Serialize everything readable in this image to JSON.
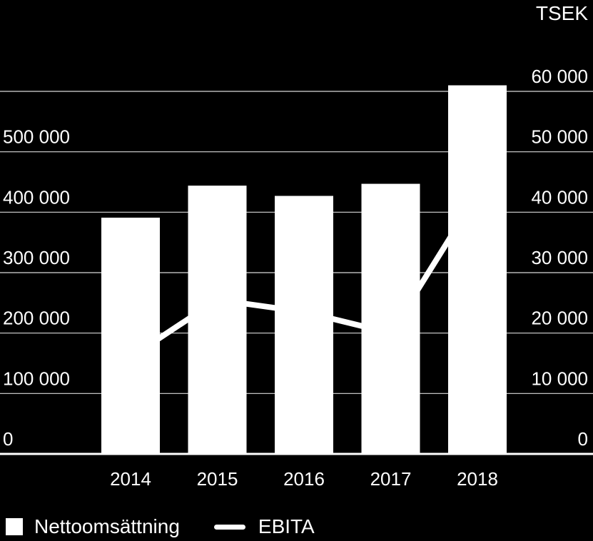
{
  "chart_data": {
    "type": "bar",
    "unit_label": "TSEK",
    "categories": [
      "2014",
      "2015",
      "2016",
      "2017",
      "2018"
    ],
    "series": [
      {
        "name": "Nettoomsättning",
        "type": "bar",
        "axis": "left",
        "values": [
          391000,
          444000,
          427000,
          447000,
          610000
        ]
      },
      {
        "name": "EBITA",
        "type": "line",
        "axis": "right",
        "values": [
          16000,
          25500,
          23500,
          20000,
          43000
        ]
      }
    ],
    "left_axis": {
      "ticks": [
        0,
        100000,
        200000,
        300000,
        400000,
        500000
      ],
      "tick_labels": [
        "0",
        "100 000",
        "200 000",
        "300 000",
        "400 000",
        "500 000"
      ],
      "ylim": [
        0,
        600000
      ]
    },
    "right_axis": {
      "ticks": [
        0,
        10000,
        20000,
        30000,
        40000,
        50000,
        60000
      ],
      "tick_labels": [
        "0",
        "10 000",
        "20 000",
        "30 000",
        "40 000",
        "50 000",
        "60 000"
      ],
      "ylim": [
        0,
        60000
      ]
    },
    "grid": true,
    "legend_position": "bottom-left",
    "colors": {
      "background": "#000000",
      "bars": "#ffffff",
      "line": "#ffffff",
      "grid": "#ffffff"
    }
  }
}
